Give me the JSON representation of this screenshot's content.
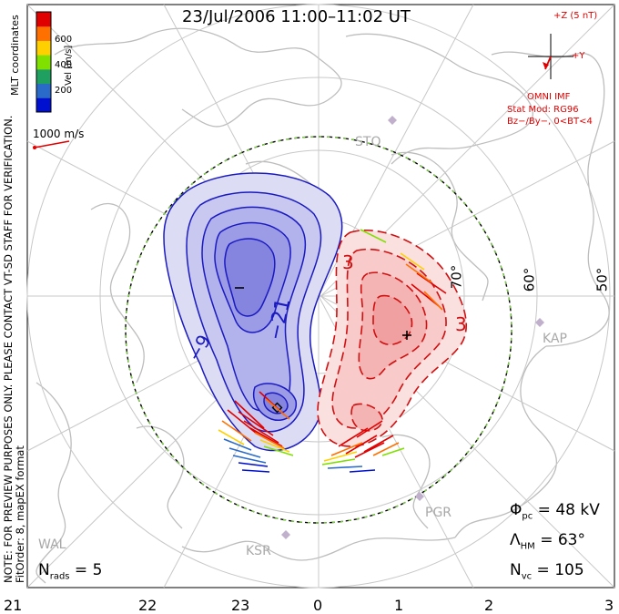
{
  "title": "23/Jul/2006 11:00–11:02 UT",
  "side_text": [
    "NOTE: FOR PREVIEW PURPOSES ONLY. PLEASE CONTACT VT-SD STAFF FOR VERIFICATION.",
    "FitOrder: 8, mapEX format"
  ],
  "coords_label": "MLT coordinates",
  "colorbar": {
    "label": "Vel [m/s]",
    "ticks": [
      "600",
      "400",
      "200"
    ],
    "colors": [
      "#e00000",
      "#ff7000",
      "#ffd000",
      "#80e000",
      "#20a060",
      "#2a6ac8",
      "#0010d0"
    ]
  },
  "reference_vector": {
    "label": "1000 m/s"
  },
  "imf": {
    "z_label": "+Z (5 nT)",
    "y_label": "+Y",
    "source": "OMNI IMF",
    "model": "Stat Mod: RG96",
    "conditions": "Bz−/By−, 0<BT<4"
  },
  "stats": {
    "phi_pc": "48 kV",
    "lambda_hm": "63°",
    "n_vc": "105",
    "n_rads": "5"
  },
  "mlt_ticks": [
    "21",
    "22",
    "23",
    "0",
    "1",
    "2",
    "3"
  ],
  "lat_labels": [
    "70°",
    "60°",
    "50°"
  ],
  "stations": [
    "STO",
    "KAP",
    "PGR",
    "KSR",
    "WAL"
  ],
  "contour_labels": {
    "neg": [
      "−21",
      "−9"
    ],
    "pos": [
      "3",
      "3"
    ]
  },
  "extrema": {
    "min_symbol": "−",
    "max_symbol": "+"
  },
  "colors": {
    "negative": "#1a1ac0",
    "positive": "#d01010",
    "grid": "#c8c8c8",
    "coast": "#bdbdbd"
  }
}
